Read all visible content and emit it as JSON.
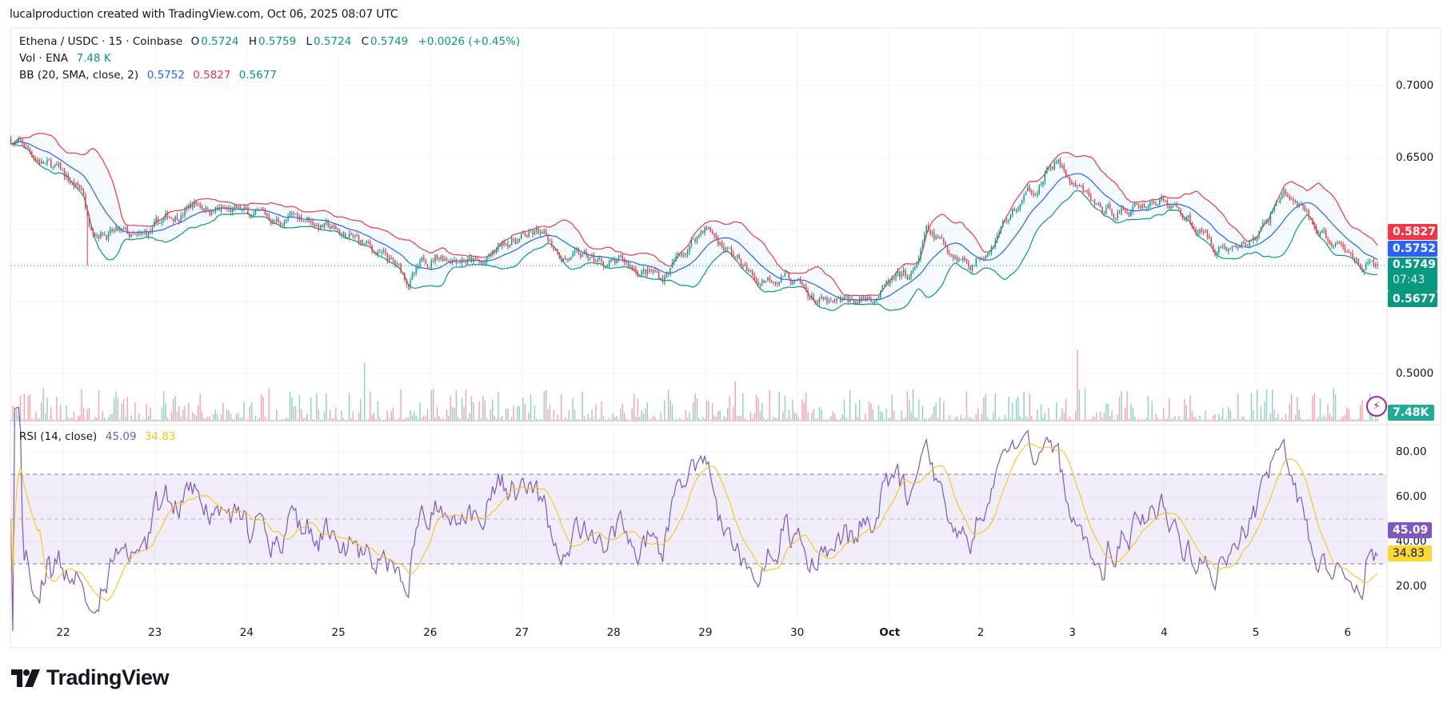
{
  "attribution": "lucalproduction created with TradingView.com, Oct 06, 2025 08:07 UTC",
  "legend": {
    "symbol": "Ethena / USDC · 15 · Coinbase",
    "o_label": "O",
    "o": "0.5724",
    "h_label": "H",
    "h": "0.5759",
    "l_label": "L",
    "l": "0.5724",
    "c_label": "C",
    "c": "0.5749",
    "change": "+0.0026 (+0.45%)",
    "vol_label": "Vol · ENA",
    "vol": "7.48 K",
    "bb_label": "BB (20, SMA, close, 2)",
    "bb_basis": "0.5752",
    "bb_upper": "0.5827",
    "bb_lower": "0.5677",
    "rsi_label": "RSI (14, close)",
    "rsi": "45.09",
    "rsi_ma": "34.83"
  },
  "price_axis": [
    "0.7000",
    "0.6500",
    "0.5000"
  ],
  "price_badges": {
    "upper": "0.5827",
    "basis": "0.5752",
    "last": "0.5749",
    "countdown": "07:43",
    "lower": "0.5677",
    "volume": "7.48K"
  },
  "rsi_axis": [
    "80.00",
    "60.00",
    "40.00",
    "20.00"
  ],
  "rsi_badges": {
    "rsi": "45.09",
    "ma": "34.83"
  },
  "date_axis": [
    "22",
    "23",
    "24",
    "25",
    "26",
    "27",
    "28",
    "29",
    "30",
    "Oct",
    "2",
    "3",
    "4",
    "5",
    "6"
  ],
  "logo": "TradingView",
  "colors": {
    "up": "#089981",
    "down": "#f23645",
    "basis": "#2962ff",
    "upper": "#f23645",
    "lower": "#089981",
    "rsi": "#7e57c2",
    "rsi_ma": "#f7c51b"
  },
  "chart_data": {
    "type": "candlestick",
    "title": "Ethena / USDC · 15 · Coinbase",
    "x_unit": "days since Sep 22 00:00 UTC",
    "ylim": [
      0.48,
      0.72
    ],
    "rsi_ylim": [
      10,
      90
    ],
    "rsi_levels": [
      70,
      50,
      30
    ],
    "price_path": {
      "t": [
        -0.57,
        -0.08,
        0.22,
        0.27,
        0.63,
        0.83,
        1.13,
        1.43,
        1.74,
        2.04,
        2.34,
        2.65,
        2.95,
        3.25,
        3.56,
        3.76,
        4.06,
        4.36,
        4.57,
        4.87,
        5.17,
        5.47,
        5.78,
        6.18,
        6.54,
        6.79,
        6.99,
        7.29,
        7.55,
        7.85,
        8.1,
        8.4,
        8.71,
        9.01,
        9.26,
        9.41,
        9.62,
        9.92,
        10.22,
        10.53,
        10.83,
        11.03,
        11.33,
        11.64,
        11.94,
        12.24,
        12.55,
        12.85,
        13.05,
        13.3,
        13.56,
        13.86,
        14.16,
        14.33
      ],
      "price": [
        0.663,
        0.641,
        0.625,
        0.606,
        0.596,
        0.59,
        0.606,
        0.619,
        0.613,
        0.609,
        0.606,
        0.609,
        0.599,
        0.59,
        0.577,
        0.564,
        0.583,
        0.583,
        0.574,
        0.593,
        0.596,
        0.583,
        0.577,
        0.574,
        0.567,
        0.587,
        0.603,
        0.583,
        0.564,
        0.571,
        0.554,
        0.545,
        0.551,
        0.561,
        0.567,
        0.596,
        0.587,
        0.577,
        0.603,
        0.625,
        0.647,
        0.628,
        0.612,
        0.615,
        0.622,
        0.609,
        0.59,
        0.587,
        0.596,
        0.628,
        0.606,
        0.587,
        0.577,
        0.5749
      ]
    },
    "last": {
      "open": 0.5724,
      "high": 0.5759,
      "low": 0.5724,
      "close": 0.5749,
      "volume_k": 7.48
    }
  }
}
